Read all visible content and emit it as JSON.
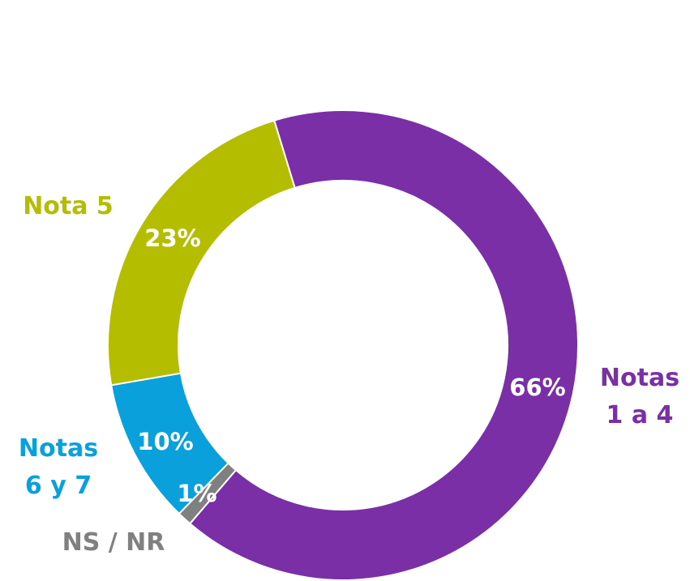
{
  "chart_data": {
    "type": "donut",
    "categories": [
      "Notas 1 a 4",
      "NS / NR",
      "Notas 6 y 7",
      "Nota 5"
    ],
    "values": [
      66,
      1,
      10,
      23
    ],
    "value_labels": [
      "66%",
      "1%",
      "10%",
      "23%"
    ],
    "colors": [
      "#7b2fa6",
      "#808080",
      "#0aa0dc",
      "#b5bd00"
    ]
  }
}
